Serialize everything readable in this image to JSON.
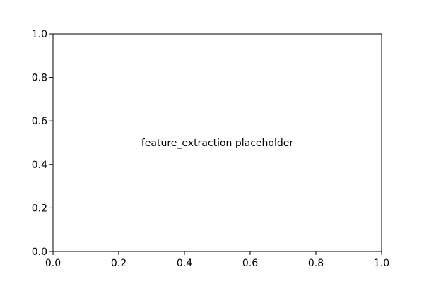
{
  "chart_data": {
    "type": "scatter",
    "title": "",
    "xlabel": "",
    "ylabel": "",
    "xlim": [
      0.0,
      1.0
    ],
    "ylim": [
      0.0,
      1.0
    ],
    "x_ticks": [
      "0.0",
      "0.2",
      "0.4",
      "0.6",
      "0.8",
      "1.0"
    ],
    "y_ticks": [
      "0.0",
      "0.2",
      "0.4",
      "0.6",
      "0.8",
      "1.0"
    ],
    "grid": false,
    "series": [],
    "annotations": [
      {
        "text": "feature_extraction placeholder",
        "x": 0.5,
        "y": 0.5
      }
    ]
  }
}
